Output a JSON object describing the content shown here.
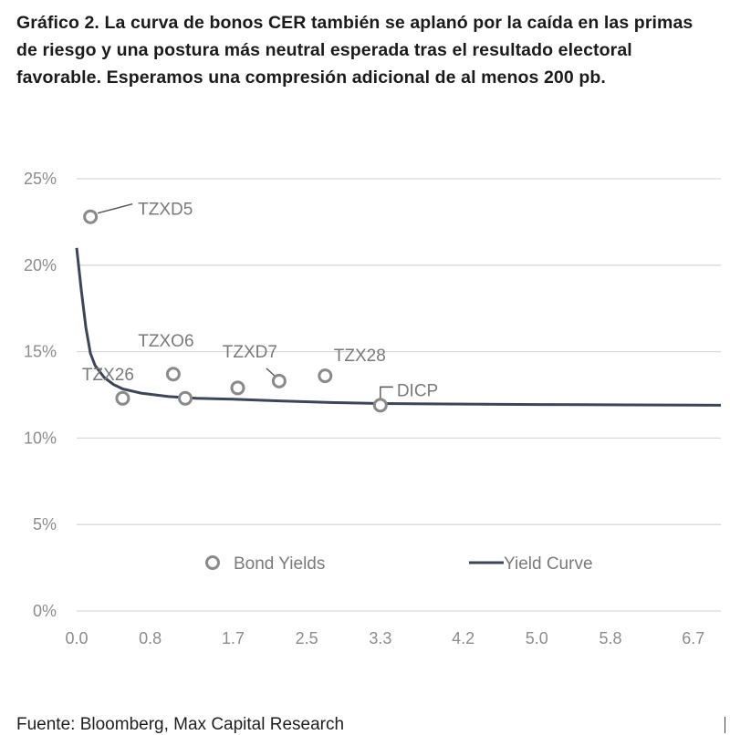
{
  "title": "Gráfico 2. La curva de bonos CER también se aplanó por la caída en las primas de riesgo y una postura más neutral esperada tras el resultado electoral favorable. Esperamos una compresión adicional de al menos 200 pb.",
  "source": "Fuente: Bloomberg, Max Capital Research",
  "chart_data": {
    "type": "scatter",
    "x_tick_labels": [
      "0.0",
      "0.8",
      "1.7",
      "2.5",
      "3.3",
      "4.2",
      "5.0",
      "5.8",
      "6.7"
    ],
    "x_ticks": [
      0.0,
      0.8,
      1.7,
      2.5,
      3.3,
      4.2,
      5.0,
      5.8,
      6.7
    ],
    "xlim": [
      0.0,
      7.0
    ],
    "y_tick_labels": [
      "0%",
      "5%",
      "10%",
      "15%",
      "20%",
      "25%"
    ],
    "y_ticks": [
      0,
      5,
      10,
      15,
      20,
      25
    ],
    "ylim": [
      0,
      25
    ],
    "grid": "horizontal",
    "legend": {
      "placement": "inside-bottom",
      "entries": [
        {
          "label": "Bond Yields",
          "marker": "circle"
        },
        {
          "label": "Yield Curve",
          "marker": "line"
        }
      ]
    },
    "colors": {
      "marker": "#8a8a8a",
      "curve": "#3c4656",
      "grid": "#d9d9d9",
      "axis_text": "#8c8c8c"
    },
    "bond_yields": [
      {
        "label": "TZXD5",
        "x": 0.15,
        "y": 22.8
      },
      {
        "label": "TZX26",
        "x": 0.5,
        "y": 12.3
      },
      {
        "label": "TZXO6",
        "x": 1.05,
        "y": 13.7
      },
      {
        "label": "",
        "x": 1.18,
        "y": 12.3
      },
      {
        "label": "",
        "x": 1.75,
        "y": 12.9
      },
      {
        "label": "TZXD7",
        "x": 2.2,
        "y": 13.3
      },
      {
        "label": "TZX28",
        "x": 2.7,
        "y": 13.6
      },
      {
        "label": "DICP",
        "x": 3.3,
        "y": 11.9
      }
    ],
    "yield_curve": {
      "x": [
        0.0,
        0.05,
        0.1,
        0.15,
        0.2,
        0.3,
        0.4,
        0.5,
        0.7,
        1.0,
        1.3,
        1.7,
        2.2,
        2.8,
        3.3,
        4.0,
        5.0,
        6.0,
        7.0
      ],
      "y": [
        21.0,
        18.6,
        16.4,
        14.9,
        14.2,
        13.5,
        13.1,
        12.85,
        12.6,
        12.4,
        12.3,
        12.25,
        12.15,
        12.05,
        12.0,
        11.97,
        11.94,
        11.92,
        11.9
      ]
    }
  }
}
